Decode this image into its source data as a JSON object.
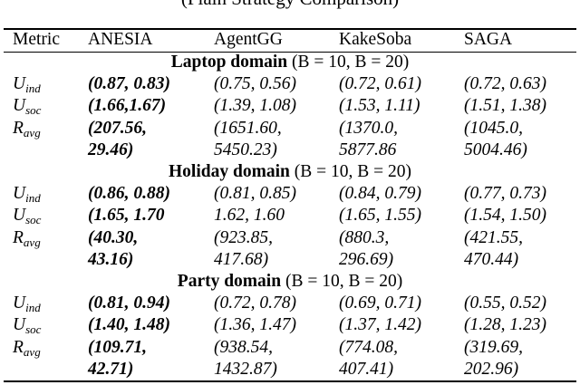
{
  "caption_fragment": "(Plain Strategy Comparison)",
  "table": {
    "headers": [
      "Metric",
      "ANESIA",
      "AgentGG",
      "KakeSoba",
      "SAGA"
    ],
    "domains": [
      {
        "name": "Laptop domain",
        "condition": "(B = 10, B = 20)",
        "rows": [
          {
            "metric": "U",
            "sub": "ind",
            "cells": [
              [
                "(0.87, 0.83)"
              ],
              [
                "(0.75, 0.56)"
              ],
              [
                "(0.72, 0.61)"
              ],
              [
                "(0.72, 0.63)"
              ]
            ]
          },
          {
            "metric": "U",
            "sub": "soc",
            "cells": [
              [
                "(1.66,1.67)"
              ],
              [
                "(1.39, 1.08)"
              ],
              [
                "(1.53, 1.11)"
              ],
              [
                "(1.51, 1.38)"
              ]
            ]
          },
          {
            "metric": "R",
            "sub": "avg",
            "cells": [
              [
                "(207.56,",
                "29.46)"
              ],
              [
                "(1651.60,",
                "5450.23)"
              ],
              [
                "(1370.0,",
                "5877.86"
              ],
              [
                "(1045.0,",
                "5004.46)"
              ]
            ]
          }
        ]
      },
      {
        "name": "Holiday domain",
        "condition": "(B = 10, B = 20)",
        "rows": [
          {
            "metric": "U",
            "sub": "ind",
            "cells": [
              [
                "(0.86, 0.88)"
              ],
              [
                "(0.81, 0.85)"
              ],
              [
                "(0.84, 0.79)"
              ],
              [
                "(0.77, 0.73)"
              ]
            ]
          },
          {
            "metric": "U",
            "sub": "soc",
            "cells": [
              [
                "(1.65, 1.70"
              ],
              [
                "1.62, 1.60"
              ],
              [
                "(1.65, 1.55)"
              ],
              [
                "(1.54, 1.50)"
              ]
            ]
          },
          {
            "metric": "R",
            "sub": "avg",
            "cells": [
              [
                "(40.30,",
                "43.16)"
              ],
              [
                "(923.85,",
                "417.68)"
              ],
              [
                "(880.3,",
                "296.69)"
              ],
              [
                "(421.55,",
                "470.44)"
              ]
            ]
          }
        ]
      },
      {
        "name": "Party domain",
        "condition": "(B = 10, B = 20)",
        "rows": [
          {
            "metric": "U",
            "sub": "ind",
            "cells": [
              [
                " (0.81, 0.94)"
              ],
              [
                "(0.72, 0.78)"
              ],
              [
                "(0.69, 0.71)"
              ],
              [
                "(0.55, 0.52)"
              ]
            ]
          },
          {
            "metric": "U",
            "sub": "soc",
            "cells": [
              [
                "(1.40, 1.48)"
              ],
              [
                "(1.36, 1.47)"
              ],
              [
                "(1.37, 1.42)"
              ],
              [
                "(1.28, 1.23)"
              ]
            ]
          },
          {
            "metric": "R",
            "sub": "avg",
            "cells": [
              [
                "(109.71,",
                "42.71)"
              ],
              [
                "(938.54,",
                "1432.87)"
              ],
              [
                "(774.08,",
                "407.41)"
              ],
              [
                "(319.69,",
                "202.96)"
              ]
            ]
          }
        ]
      }
    ]
  }
}
